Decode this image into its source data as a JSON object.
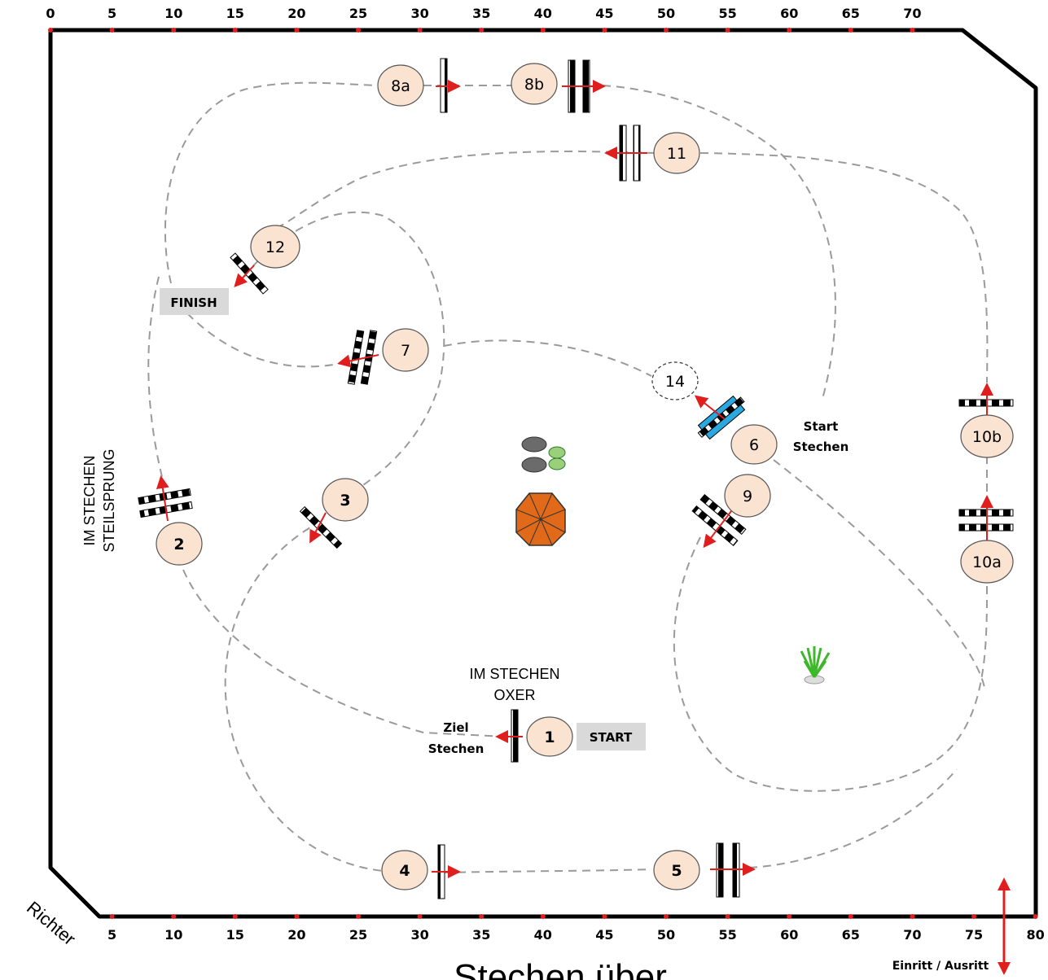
{
  "arena": {
    "top_ticks": [
      "0",
      "5",
      "10",
      "15",
      "20",
      "25",
      "30",
      "35",
      "40",
      "45",
      "50",
      "55",
      "60",
      "65",
      "70"
    ],
    "bottom_ticks": [
      "5",
      "10",
      "15",
      "20",
      "25",
      "30",
      "35",
      "40",
      "45",
      "50",
      "55",
      "60",
      "65",
      "70",
      "75",
      "80"
    ],
    "judge_label": "Richter",
    "entry_label": "Einritt / Ausritt",
    "title_partial": "Stechen über",
    "colors": {
      "path": "#9a9a9a",
      "bubble": "#fbe3d2",
      "arrow": "#e01e1e",
      "liverpool": "#2aa8e0",
      "parasol": "#e06a1a"
    }
  },
  "jumps": [
    {
      "id": "1",
      "label": "1"
    },
    {
      "id": "2",
      "label": "2"
    },
    {
      "id": "3",
      "label": "3"
    },
    {
      "id": "4",
      "label": "4"
    },
    {
      "id": "5",
      "label": "5"
    },
    {
      "id": "6",
      "label": "6"
    },
    {
      "id": "7",
      "label": "7"
    },
    {
      "id": "8a",
      "label": "8a"
    },
    {
      "id": "8b",
      "label": "8b"
    },
    {
      "id": "9",
      "label": "9"
    },
    {
      "id": "10a",
      "label": "10a"
    },
    {
      "id": "10b",
      "label": "10b"
    },
    {
      "id": "11",
      "label": "11"
    },
    {
      "id": "12",
      "label": "12"
    },
    {
      "id": "14",
      "label": "14"
    }
  ],
  "labels": {
    "start": "START",
    "finish": "FINISH",
    "start_stechen_1": "Start",
    "start_stechen_2": "Stechen",
    "ziel_stechen_1": "Ziel",
    "ziel_stechen_2": "Stechen",
    "oxer_1": "IM STECHEN",
    "oxer_2": "OXER",
    "steil_1": "IM STECHEN",
    "steil_2": "STEILSPRUNG"
  }
}
